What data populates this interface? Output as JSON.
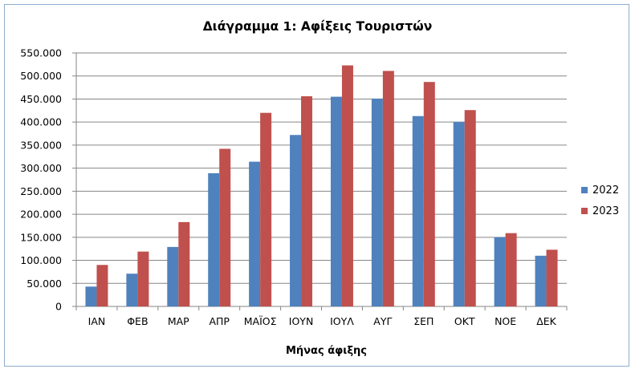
{
  "chart_data": {
    "type": "bar",
    "title": "Διάγραμμα 1: Αφίξεις Τουριστών",
    "xlabel": "Μήνας άφιξης",
    "ylabel": "",
    "ylim": [
      0,
      550000
    ],
    "yticks": [
      {
        "value": 0,
        "label": "0"
      },
      {
        "value": 50000,
        "label": "50.000"
      },
      {
        "value": 100000,
        "label": "100.000"
      },
      {
        "value": 150000,
        "label": "150.000"
      },
      {
        "value": 200000,
        "label": "200.000"
      },
      {
        "value": 250000,
        "label": "250.000"
      },
      {
        "value": 300000,
        "label": "300.000"
      },
      {
        "value": 350000,
        "label": "350.000"
      },
      {
        "value": 400000,
        "label": "400.000"
      },
      {
        "value": 450000,
        "label": "450.000"
      },
      {
        "value": 500000,
        "label": "500.000"
      },
      {
        "value": 550000,
        "label": "550.000"
      }
    ],
    "categories": [
      "ΙΑΝ",
      "ΦΕΒ",
      "ΜΑΡ",
      "ΑΠΡ",
      "ΜΑΪΟΣ",
      "ΙΟΥΝ",
      "ΙΟΥΛ",
      "ΑΥΓ",
      "ΣΕΠ",
      "ΟΚΤ",
      "ΝΟΕ",
      "ΔΕΚ"
    ],
    "series": [
      {
        "name": "2022",
        "color": "#4f81bd",
        "values": [
          43000,
          71000,
          129000,
          289000,
          314000,
          372000,
          455000,
          451000,
          413000,
          400000,
          150000,
          110000
        ]
      },
      {
        "name": "2023",
        "color": "#c0504d",
        "values": [
          90000,
          119000,
          183000,
          342000,
          420000,
          456000,
          523000,
          511000,
          487000,
          426000,
          159000,
          123000
        ]
      }
    ],
    "grid": true,
    "legend": "right"
  }
}
